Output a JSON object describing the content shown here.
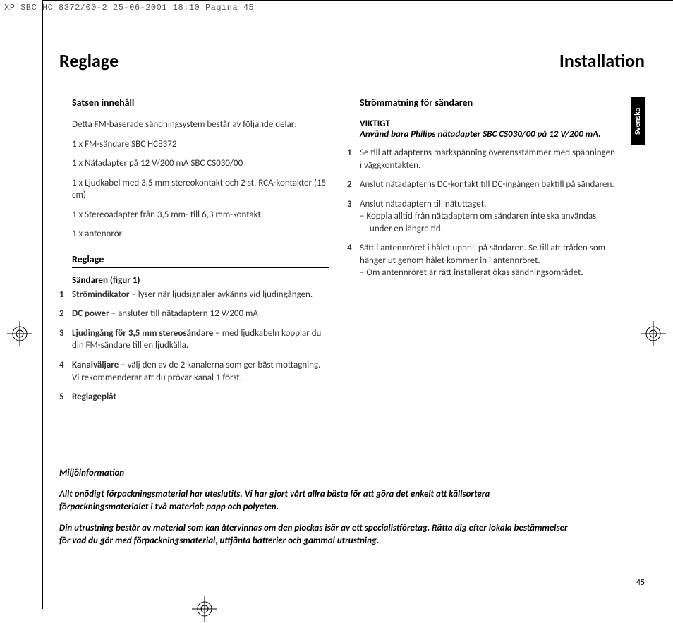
{
  "print_header": "XP SBC HC 8372/00-2  25-06-2001 18:10  Pagina 45",
  "title_left": "Reglage",
  "title_right": "Installation",
  "side_tab": "Svenska",
  "page_number": "45",
  "leftcol": {
    "s1_head": "Satsen innehåll",
    "s1_intro": "Detta FM-baserade sändningsystem består av följande delar:",
    "s1_items": [
      "1 x FM-sändare SBC HC8372",
      "1 x Nätadapter på 12 V/200 mA SBC CS030/00",
      "1 x Ljudkabel med 3,5 mm stereokontakt och 2 st. RCA-kontakter (15 cm)",
      "1 x Stereoadapter från 3,5 mm- till 6,3 mm-kontakt",
      "1 x antennrör"
    ],
    "s2_head": "Reglage",
    "s2_sub": "Sändaren (figur 1)",
    "s2_items": [
      {
        "n": "1",
        "bold": "Strömindikator",
        "rest": " – lyser när ljudsignaler avkänns vid ljudingången."
      },
      {
        "n": "2",
        "bold": "DC power",
        "rest": " – ansluter till nätadaptern 12 V/200 mA"
      },
      {
        "n": "3",
        "bold": "Ljudingång för 3,5 mm stereosändare",
        "rest": " – med ljudkabeln kopplar du din FM-sändare till en ljudkälla."
      },
      {
        "n": "4",
        "bold": "Kanalväljare",
        "rest": " – välj den av de 2 kanalerna som ger bäst mottagning. Vi rekommenderar att du prövar kanal 1 först."
      },
      {
        "n": "5",
        "bold": "Reglageplåt",
        "rest": ""
      }
    ]
  },
  "rightcol": {
    "s1_head": "Strömmatning för sändaren",
    "important_label": "VIKTIGT",
    "important_text": "Använd bara Philips nätadapter SBC CS030/00 på 12 V/200 mA.",
    "steps": [
      {
        "n": "1",
        "text": "Se till att adapterns märkspänning överensstämmer med spänningen i väggkontakten."
      },
      {
        "n": "2",
        "text": "Anslut nätadapterns DC-kontakt till DC-ingången baktill på sändaren."
      },
      {
        "n": "3",
        "text": "Anslut nätadaptern till nätuttaget.",
        "sub": [
          "Koppla alltid från nätadaptern om sändaren inte ska användas under en längre tid."
        ]
      },
      {
        "n": "4",
        "text": "Sätt i antennröret i hålet upptill på sändaren. Se till att tråden som hänger ut genom hålet kommer in i antennröret.",
        "sub": [
          "Om antennröret är rätt installerat ökas sändningsområdet."
        ]
      }
    ]
  },
  "footer": {
    "head": "Miljöinformation",
    "p1": "Allt onödigt förpackningsmaterial har uteslutits. Vi har gjort vårt allra bästa för att göra det enkelt att källsortera förpackningsmaterialet i två material: papp och polyeten.",
    "p2": "Din utrustning består av material som kan återvinnas om den plockas isär av ett specialistföretag. Rätta dig efter lokala bestämmelser för vad du gör med förpackningsmaterial, uttjänta batterier och gammal utrustning."
  }
}
